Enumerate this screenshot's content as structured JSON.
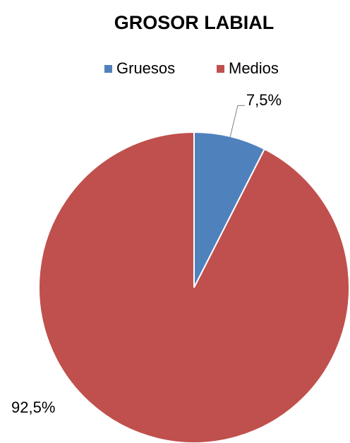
{
  "chart_data": {
    "type": "pie",
    "title": "GROSOR LABIAL",
    "categories": [
      "Gruesos",
      "Medios"
    ],
    "values": [
      7.5,
      92.5
    ],
    "value_labels": [
      "7,5%",
      "92,5%"
    ],
    "colors": [
      "#4f81bd",
      "#c0504d"
    ],
    "legend": "top"
  }
}
